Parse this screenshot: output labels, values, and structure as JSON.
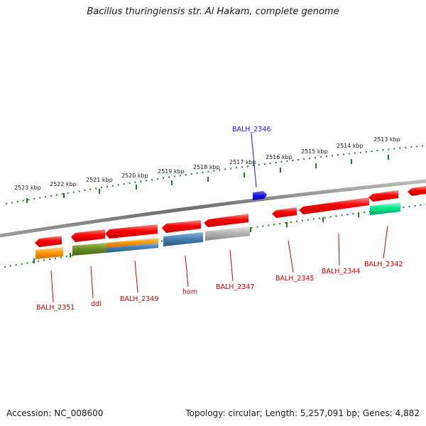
{
  "title": "Bacillus thuringiensis str. Al Hakam, complete genome",
  "footer": {
    "accession": "Accession: NC_008600",
    "summary": "Topology: circular; Length: 5,257,091 bp; Genes: 4,882"
  },
  "colors": {
    "backbone": "#7a7a7a",
    "ticks": "#1e7a1e",
    "forward_gene": "#e60000",
    "reverse_gene_label": "#cc0000",
    "highlight_gene": "#1414dc",
    "orange": "#ff8c00",
    "olive": "#6b8e23",
    "steelblue": "#4682b4",
    "grey": "#b4b4b4",
    "springgreen": "#00e68a"
  },
  "kbp_labels": [
    "2523 kbp",
    "2522 kbp",
    "2521 kbp",
    "2520 kbp",
    "2519 kbp",
    "2518 kbp",
    "2517 kbp",
    "2516 kbp",
    "2515 kbp",
    "2514 kbp",
    "2513 kbp"
  ],
  "gene_labels": [
    {
      "text": "BALH_2346",
      "color": "#1414dc"
    },
    {
      "text": "BALH_2351",
      "color": "#cc0000"
    },
    {
      "text": "ddl",
      "color": "#cc0000"
    },
    {
      "text": "BALH_2349",
      "color": "#cc0000"
    },
    {
      "text": "hom",
      "color": "#cc0000"
    },
    {
      "text": "BALH_2347",
      "color": "#cc0000"
    },
    {
      "text": "BALH_2345",
      "color": "#cc0000"
    },
    {
      "text": "BALH_2344",
      "color": "#cc0000"
    },
    {
      "text": "BALH_2342",
      "color": "#cc0000"
    }
  ]
}
